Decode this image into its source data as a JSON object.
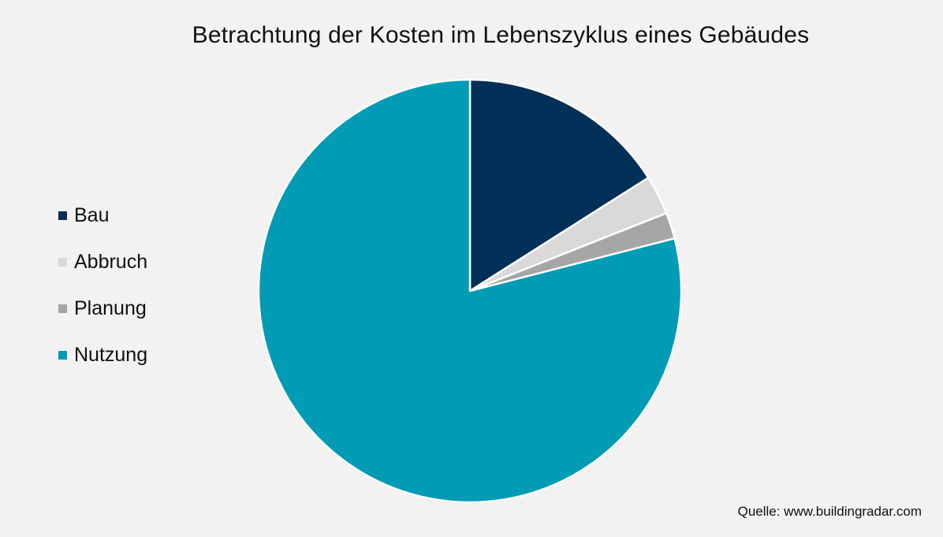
{
  "chart_data": {
    "type": "pie",
    "title": "Betrachtung der Kosten im Lebenszyklus eines Gebäudes",
    "legend_position": "left",
    "start_angle_deg": 0,
    "direction": "clockwise",
    "slices": [
      {
        "label": "Bau",
        "value": 16,
        "color": "#003057"
      },
      {
        "label": "Abbruch",
        "value": 3,
        "color": "#d9d9d9"
      },
      {
        "label": "Planung",
        "value": 2,
        "color": "#a6a6a6"
      },
      {
        "label": "Nutzung",
        "value": 79,
        "color": "#009bb4"
      }
    ]
  },
  "source": "Quelle: www.buildingradar.com",
  "background_color": "#f2f2f3"
}
